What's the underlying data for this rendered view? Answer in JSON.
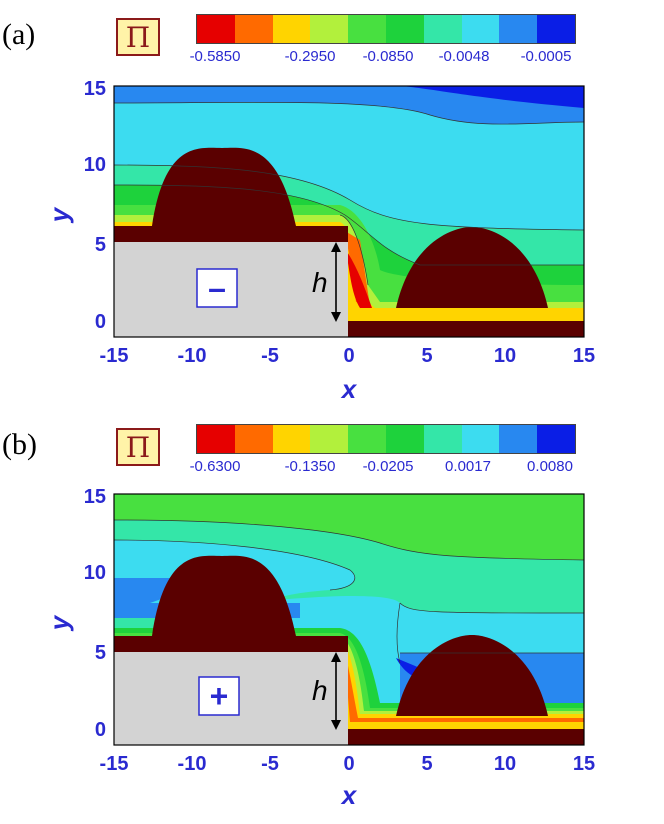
{
  "chart_data": [
    {
      "panel": "(a)",
      "type": "heatmap",
      "colorbar_title": "Π",
      "colorbar_ticks": [
        "-0.5850",
        "-0.2950",
        "-0.0850",
        "-0.0048",
        "-0.0005"
      ],
      "xlabel": "x",
      "ylabel": "y",
      "xticks": [
        "-15",
        "-10",
        "-5",
        "0",
        "5",
        "10",
        "15"
      ],
      "yticks": [
        "0",
        "5",
        "10",
        "15"
      ],
      "xlim": [
        -15,
        15
      ],
      "ylim": [
        -1,
        15
      ],
      "step_height_label": "h",
      "sign_label": "–"
    },
    {
      "panel": "(b)",
      "type": "heatmap",
      "colorbar_title": "Π",
      "colorbar_ticks": [
        "-0.6300",
        "-0.1350",
        "-0.0205",
        "0.0017",
        "0.0080"
      ],
      "xlabel": "x",
      "ylabel": "y",
      "xticks": [
        "-15",
        "-10",
        "-5",
        "0",
        "5",
        "10",
        "15"
      ],
      "yticks": [
        "0",
        "5",
        "10",
        "15"
      ],
      "xlim": [
        -15,
        15
      ],
      "ylim": [
        -1,
        15
      ],
      "step_height_label": "h",
      "sign_label": "+"
    }
  ],
  "colors": {
    "levels": [
      "#e60000",
      "#ff6a00",
      "#ffd400",
      "#b2f03c",
      "#48e040",
      "#1ed23c",
      "#34e6a8",
      "#3cdcf0",
      "#2888f0",
      "#0a1ee6"
    ],
    "obstacle": "#5a0000",
    "solid": "#d3d3d3",
    "axis_text": "#2a2ad0"
  }
}
